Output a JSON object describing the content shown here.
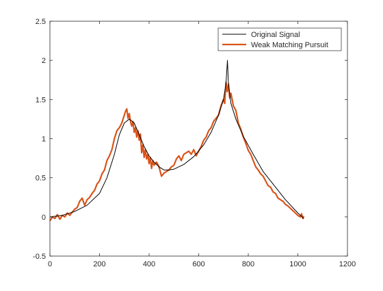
{
  "chart_data": {
    "type": "line",
    "title": "",
    "xlabel": "",
    "ylabel": "",
    "xlim": [
      0,
      1200
    ],
    "ylim": [
      -0.5,
      2.5
    ],
    "x_ticks": [
      0,
      200,
      400,
      600,
      800,
      1000,
      1200
    ],
    "y_ticks": [
      -0.5,
      0,
      0.5,
      1,
      1.5,
      2,
      2.5
    ],
    "x_tick_labels": [
      "0",
      "200",
      "400",
      "600",
      "800",
      "1000",
      "1200"
    ],
    "y_tick_labels": [
      "-0.5",
      "0",
      "0.5",
      "1",
      "1.5",
      "2",
      "2.5"
    ],
    "grid": false,
    "legend_position": "top-right",
    "series": [
      {
        "name": "Original Signal",
        "color": "#000000",
        "x": [
          0,
          50,
          100,
          150,
          200,
          230,
          260,
          280,
          300,
          320,
          340,
          360,
          380,
          400,
          420,
          440,
          460,
          480,
          500,
          540,
          580,
          620,
          650,
          680,
          700,
          710,
          716,
          720,
          730,
          750,
          780,
          820,
          860,
          900,
          950,
          1000,
          1024
        ],
        "values": [
          0.0,
          0.02,
          0.07,
          0.15,
          0.3,
          0.5,
          0.8,
          1.05,
          1.2,
          1.25,
          1.2,
          1.05,
          0.9,
          0.78,
          0.7,
          0.64,
          0.6,
          0.6,
          0.61,
          0.67,
          0.77,
          0.92,
          1.08,
          1.3,
          1.5,
          1.7,
          2.0,
          1.7,
          1.45,
          1.25,
          1.03,
          0.8,
          0.58,
          0.42,
          0.22,
          0.05,
          -0.02
        ]
      },
      {
        "name": "Weak Matching Pursuit",
        "color": "#d95319",
        "x": [
          0,
          10,
          20,
          30,
          40,
          50,
          60,
          70,
          80,
          90,
          100,
          110,
          120,
          130,
          140,
          150,
          160,
          170,
          180,
          190,
          200,
          210,
          220,
          230,
          240,
          250,
          260,
          270,
          280,
          290,
          300,
          305,
          310,
          315,
          320,
          325,
          330,
          335,
          340,
          345,
          350,
          355,
          360,
          365,
          370,
          375,
          380,
          385,
          390,
          395,
          400,
          405,
          410,
          415,
          420,
          430,
          440,
          450,
          455,
          460,
          470,
          480,
          490,
          500,
          510,
          520,
          530,
          540,
          550,
          560,
          570,
          580,
          590,
          600,
          610,
          620,
          630,
          640,
          650,
          660,
          670,
          680,
          690,
          700,
          705,
          710,
          715,
          720,
          725,
          730,
          740,
          750,
          760,
          770,
          780,
          790,
          800,
          810,
          820,
          830,
          840,
          850,
          860,
          870,
          880,
          890,
          900,
          910,
          920,
          930,
          940,
          950,
          960,
          970,
          980,
          990,
          1000,
          1010,
          1015,
          1020,
          1024
        ],
        "values": [
          -0.05,
          0.0,
          -0.02,
          0.03,
          -0.03,
          0.02,
          0.0,
          0.05,
          0.02,
          0.06,
          0.1,
          0.12,
          0.2,
          0.24,
          0.15,
          0.22,
          0.25,
          0.3,
          0.34,
          0.42,
          0.46,
          0.55,
          0.6,
          0.72,
          0.78,
          0.86,
          1.0,
          1.1,
          1.14,
          1.2,
          1.3,
          1.35,
          1.38,
          1.26,
          1.32,
          1.22,
          1.16,
          1.22,
          1.08,
          1.14,
          1.02,
          1.1,
          0.98,
          1.06,
          0.82,
          0.92,
          0.76,
          0.86,
          0.74,
          0.8,
          0.68,
          0.76,
          0.62,
          0.72,
          0.66,
          0.7,
          0.64,
          0.52,
          0.54,
          0.56,
          0.58,
          0.6,
          0.64,
          0.66,
          0.74,
          0.78,
          0.72,
          0.8,
          0.82,
          0.84,
          0.8,
          0.86,
          0.78,
          0.84,
          0.9,
          0.98,
          1.02,
          1.1,
          1.14,
          1.22,
          1.26,
          1.3,
          1.42,
          1.5,
          1.45,
          1.72,
          1.6,
          1.7,
          1.52,
          1.58,
          1.42,
          1.36,
          1.2,
          1.12,
          1.02,
          0.94,
          0.85,
          0.8,
          0.72,
          0.64,
          0.6,
          0.55,
          0.52,
          0.46,
          0.4,
          0.38,
          0.32,
          0.3,
          0.24,
          0.22,
          0.2,
          0.16,
          0.14,
          0.11,
          0.08,
          0.05,
          0.02,
          0.0,
          0.04,
          -0.02,
          0.01
        ]
      }
    ]
  }
}
